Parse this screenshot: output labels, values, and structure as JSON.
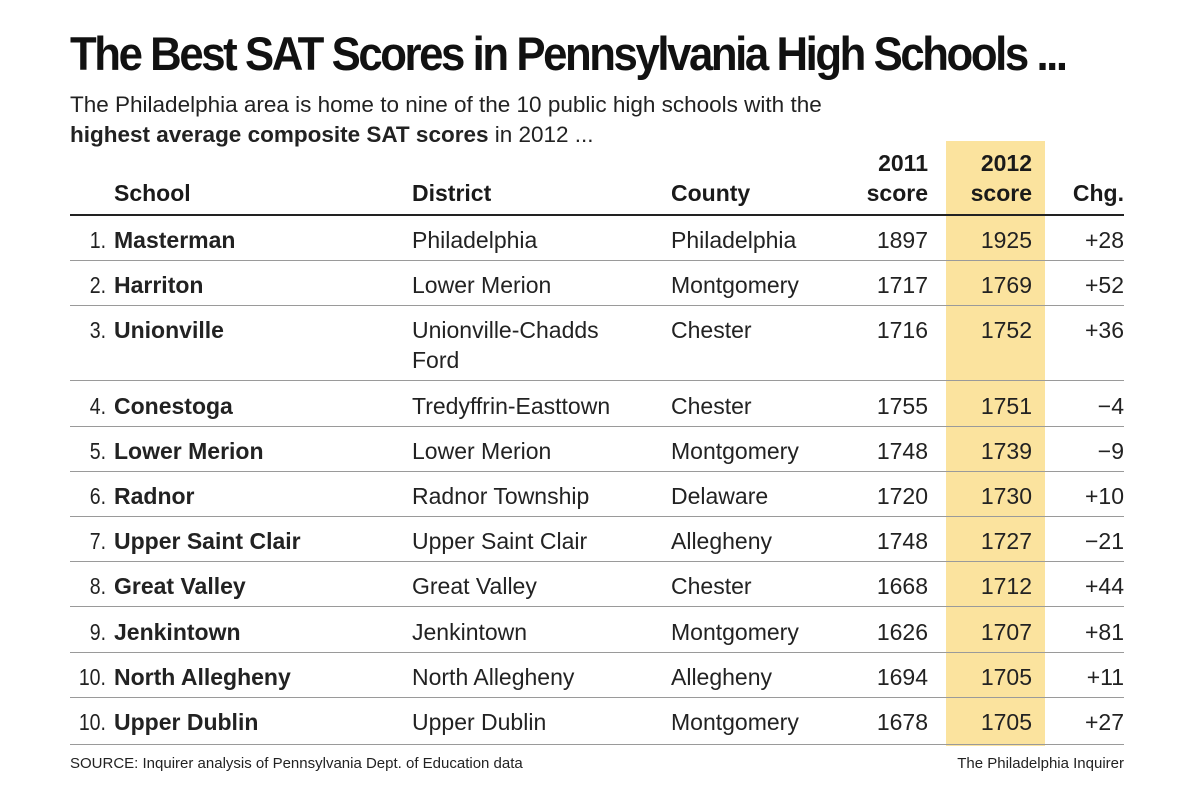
{
  "title": "The Best SAT Scores in Pennsylvania High Schools ...",
  "subtitle_line1": "The Philadelphia area is home to nine of the 10 public high schools with the",
  "subtitle_bold": "highest average composite SAT scores",
  "subtitle_tail": " in 2012 ...",
  "headers": {
    "school": "School",
    "district": "District",
    "county": "County",
    "score2011_line1": "2011",
    "score2011_line2": "score",
    "score2012_line1": "2012",
    "score2012_line2": "score",
    "change": "Chg."
  },
  "colors": {
    "highlight": "#fbe39e",
    "rule": "#222222",
    "separator": "#9a9a9a"
  },
  "source": "SOURCE: Inquirer analysis of Pennsylvania Dept. of Education data",
  "credit": "The Philadelphia Inquirer",
  "chart_data": {
    "type": "table",
    "title": "The Best SAT Scores in Pennsylvania High Schools ...",
    "columns": [
      "School",
      "District",
      "County",
      "2011 score",
      "2012 score",
      "Chg."
    ],
    "rows": [
      {
        "rank": "1.",
        "school": "Masterman",
        "district": "Philadelphia",
        "county": "Philadelphia",
        "score2011": "1897",
        "score2012": "1925",
        "change": "+28"
      },
      {
        "rank": "2.",
        "school": "Harriton",
        "district": "Lower Merion",
        "county": "Montgomery",
        "score2011": "1717",
        "score2012": "1769",
        "change": "+52"
      },
      {
        "rank": "3.",
        "school": "Unionville",
        "district": "Unionville-Chadds Ford",
        "county": "Chester",
        "score2011": "1716",
        "score2012": "1752",
        "change": "+36"
      },
      {
        "rank": "4.",
        "school": "Conestoga",
        "district": "Tredyffrin-Easttown",
        "county": "Chester",
        "score2011": "1755",
        "score2012": "1751",
        "change": "−4"
      },
      {
        "rank": "5.",
        "school": "Lower Merion",
        "district": "Lower Merion",
        "county": "Montgomery",
        "score2011": "1748",
        "score2012": "1739",
        "change": "−9"
      },
      {
        "rank": "6.",
        "school": "Radnor",
        "district": "Radnor Township",
        "county": "Delaware",
        "score2011": "1720",
        "score2012": "1730",
        "change": "+10"
      },
      {
        "rank": "7.",
        "school": "Upper Saint Clair",
        "district": "Upper Saint Clair",
        "county": "Allegheny",
        "score2011": "1748",
        "score2012": "1727",
        "change": "−21"
      },
      {
        "rank": "8.",
        "school": "Great Valley",
        "district": "Great Valley",
        "county": "Chester",
        "score2011": "1668",
        "score2012": "1712",
        "change": "+44"
      },
      {
        "rank": "9.",
        "school": "Jenkintown",
        "district": "Jenkintown",
        "county": "Montgomery",
        "score2011": "1626",
        "score2012": "1707",
        "change": "+81"
      },
      {
        "rank": "10.",
        "school": "North Allegheny",
        "district": "North Allegheny",
        "county": "Allegheny",
        "score2011": "1694",
        "score2012": "1705",
        "change": "+11"
      },
      {
        "rank": "10.",
        "school": "Upper Dublin",
        "district": "Upper Dublin",
        "county": "Montgomery",
        "score2011": "1678",
        "score2012": "1705",
        "change": "+27"
      }
    ]
  }
}
